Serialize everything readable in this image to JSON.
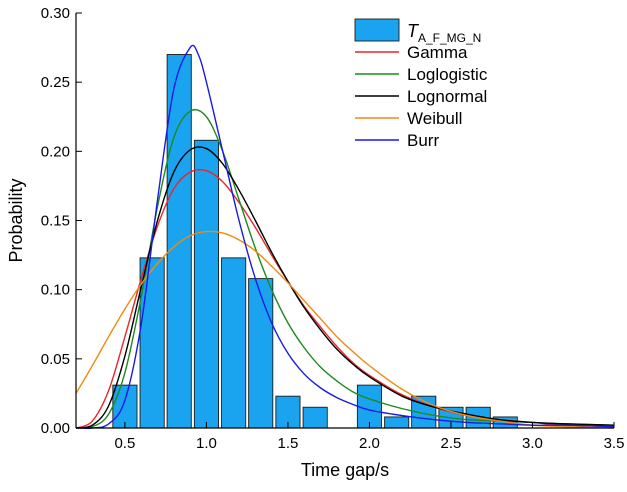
{
  "chart_data": {
    "type": "bar",
    "xlabel": "Time gap/s",
    "ylabel": "Probability",
    "xlim": [
      0.2,
      3.5
    ],
    "ylim": [
      0,
      0.3
    ],
    "xticks": [
      0.5,
      1.0,
      1.5,
      2.0,
      2.5,
      3.0,
      3.5
    ],
    "xtick_labels": [
      "0.5",
      "1.0",
      "1.5",
      "2.0",
      "2.5",
      "3.0",
      "3.5"
    ],
    "yticks": [
      0.0,
      0.05,
      0.1,
      0.15,
      0.2,
      0.25,
      0.3
    ],
    "ytick_labels": [
      "0.00",
      "0.05",
      "0.10",
      "0.15",
      "0.20",
      "0.25",
      "0.30"
    ],
    "legend_position": "top-right",
    "histogram": {
      "name_main": "T",
      "name_sub": "A_F_MG_N",
      "color": "#1aa3ee",
      "bin_width": 0.1667,
      "bin_centers": [
        0.5,
        0.667,
        0.833,
        1.0,
        1.167,
        1.333,
        1.5,
        1.667,
        1.833,
        2.0,
        2.167,
        2.333,
        2.5,
        2.667,
        2.833,
        3.0,
        3.167
      ],
      "values": [
        0.031,
        0.123,
        0.27,
        0.208,
        0.123,
        0.108,
        0.023,
        0.015,
        0.0,
        0.031,
        0.008,
        0.023,
        0.015,
        0.015,
        0.008,
        0.0,
        0.0
      ]
    },
    "series": [
      {
        "name": "Gamma",
        "color": "#e8262b",
        "x": [
          0.2,
          0.3,
          0.4,
          0.5,
          0.6,
          0.7,
          0.8,
          0.9,
          1.0,
          1.1,
          1.2,
          1.3,
          1.4,
          1.5,
          1.6,
          1.7,
          1.8,
          1.9,
          2.0,
          2.2,
          2.4,
          2.6,
          2.8,
          3.0,
          3.2,
          3.5
        ],
        "y": [
          0.0,
          0.005,
          0.027,
          0.066,
          0.108,
          0.146,
          0.173,
          0.185,
          0.186,
          0.178,
          0.163,
          0.145,
          0.125,
          0.106,
          0.088,
          0.073,
          0.059,
          0.047,
          0.038,
          0.024,
          0.015,
          0.009,
          0.006,
          0.004,
          0.002,
          0.001
        ]
      },
      {
        "name": "Loglogistic",
        "color": "#1e8a1e",
        "x": [
          0.2,
          0.3,
          0.4,
          0.5,
          0.6,
          0.7,
          0.8,
          0.9,
          1.0,
          1.1,
          1.2,
          1.3,
          1.4,
          1.5,
          1.6,
          1.7,
          1.8,
          1.9,
          2.0,
          2.2,
          2.4,
          2.6,
          2.8,
          3.0,
          3.2,
          3.5
        ],
        "y": [
          0.0,
          0.001,
          0.01,
          0.04,
          0.095,
          0.16,
          0.21,
          0.229,
          0.225,
          0.2,
          0.165,
          0.13,
          0.1,
          0.076,
          0.058,
          0.044,
          0.034,
          0.026,
          0.021,
          0.014,
          0.009,
          0.006,
          0.005,
          0.004,
          0.003,
          0.002
        ]
      },
      {
        "name": "Lognormal",
        "color": "#000000",
        "x": [
          0.2,
          0.3,
          0.4,
          0.5,
          0.6,
          0.7,
          0.8,
          0.9,
          1.0,
          1.1,
          1.2,
          1.3,
          1.4,
          1.5,
          1.6,
          1.7,
          1.8,
          1.9,
          2.0,
          2.2,
          2.4,
          2.6,
          2.8,
          3.0,
          3.2,
          3.5
        ],
        "y": [
          0.0,
          0.002,
          0.016,
          0.052,
          0.102,
          0.15,
          0.185,
          0.201,
          0.202,
          0.191,
          0.172,
          0.15,
          0.127,
          0.106,
          0.087,
          0.071,
          0.057,
          0.046,
          0.037,
          0.023,
          0.015,
          0.01,
          0.006,
          0.004,
          0.003,
          0.002
        ]
      },
      {
        "name": "Weibull",
        "color": "#f08a10",
        "x": [
          0.2,
          0.3,
          0.4,
          0.5,
          0.6,
          0.7,
          0.8,
          0.9,
          1.0,
          1.1,
          1.2,
          1.3,
          1.4,
          1.5,
          1.6,
          1.7,
          1.8,
          1.9,
          2.0,
          2.2,
          2.4,
          2.6,
          2.8,
          3.0,
          3.2,
          3.5
        ],
        "y": [
          0.025,
          0.045,
          0.066,
          0.086,
          0.104,
          0.119,
          0.131,
          0.139,
          0.142,
          0.141,
          0.136,
          0.128,
          0.117,
          0.105,
          0.092,
          0.079,
          0.066,
          0.055,
          0.045,
          0.028,
          0.016,
          0.009,
          0.005,
          0.002,
          0.001,
          0.0
        ]
      },
      {
        "name": "Burr",
        "color": "#1a1ae6",
        "x": [
          0.2,
          0.3,
          0.4,
          0.5,
          0.6,
          0.7,
          0.8,
          0.9,
          0.95,
          1.0,
          1.1,
          1.2,
          1.3,
          1.4,
          1.5,
          1.6,
          1.7,
          1.8,
          1.9,
          2.0,
          2.2,
          2.4,
          2.6,
          2.8,
          3.0,
          3.2,
          3.5
        ],
        "y": [
          0.0,
          0.0,
          0.003,
          0.02,
          0.075,
          0.165,
          0.245,
          0.275,
          0.27,
          0.25,
          0.2,
          0.15,
          0.108,
          0.076,
          0.054,
          0.039,
          0.029,
          0.022,
          0.017,
          0.013,
          0.009,
          0.006,
          0.004,
          0.003,
          0.002,
          0.002,
          0.001
        ]
      }
    ]
  }
}
